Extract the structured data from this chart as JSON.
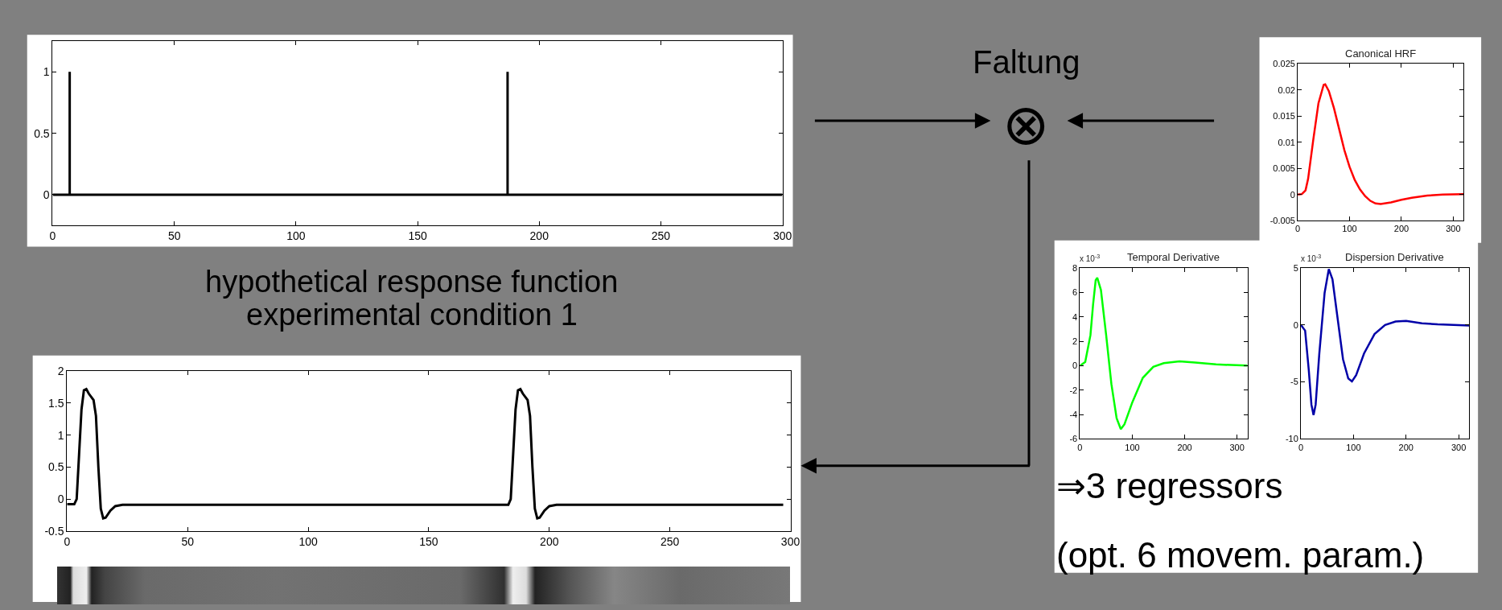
{
  "chart_data": [
    {
      "type": "line",
      "x": [
        0,
        7,
        7,
        7,
        187,
        187,
        187,
        300
      ],
      "values": [
        0,
        0,
        1,
        0,
        0,
        1,
        0,
        0
      ],
      "color": "#000000",
      "xlim": [
        0,
        300
      ],
      "ylim": [
        -0.25,
        1.25
      ],
      "xticks": [
        0,
        50,
        100,
        150,
        200,
        250,
        300
      ],
      "yticks": [
        0,
        0.5,
        1
      ]
    },
    {
      "type": "line",
      "x": [
        0,
        3,
        4,
        5,
        6,
        7,
        8,
        9,
        11,
        12,
        13,
        14,
        15,
        16,
        18,
        20,
        23,
        183,
        184,
        185,
        186,
        187,
        188,
        189,
        191,
        192,
        193,
        194,
        195,
        196,
        198,
        200,
        203,
        297
      ],
      "values": [
        -0.08,
        -0.08,
        0,
        0.7,
        1.4,
        1.7,
        1.72,
        1.65,
        1.55,
        1.3,
        0.5,
        -0.15,
        -0.3,
        -0.29,
        -0.18,
        -0.11,
        -0.09,
        -0.09,
        0,
        0.7,
        1.4,
        1.7,
        1.72,
        1.65,
        1.55,
        1.3,
        0.5,
        -0.15,
        -0.3,
        -0.29,
        -0.18,
        -0.11,
        -0.09,
        -0.09
      ],
      "color": "#000000",
      "xlim": [
        0,
        300
      ],
      "ylim": [
        -0.5,
        2
      ],
      "xticks": [
        0,
        50,
        100,
        150,
        200,
        250,
        300
      ],
      "yticks": [
        -0.5,
        0,
        0.5,
        1,
        1.5,
        2
      ]
    },
    {
      "type": "line",
      "title": "Canonical HRF",
      "x": [
        0,
        8,
        15,
        20,
        30,
        40,
        50,
        53,
        60,
        70,
        80,
        90,
        100,
        110,
        120,
        130,
        140,
        150,
        160,
        180,
        200,
        220,
        250,
        280,
        320
      ],
      "values": [
        0,
        0.0001,
        0.0008,
        0.003,
        0.0105,
        0.0175,
        0.021,
        0.0211,
        0.0198,
        0.0165,
        0.0125,
        0.0085,
        0.0053,
        0.0028,
        0.001,
        -0.0003,
        -0.0012,
        -0.0017,
        -0.0018,
        -0.0015,
        -0.001,
        -0.0006,
        -0.0002,
        0,
        0.0001
      ],
      "color": "#ff0000",
      "xlim": [
        0,
        320
      ],
      "ylim": [
        -0.005,
        0.025
      ],
      "xticks": [
        0,
        100,
        200,
        300
      ],
      "yticks": [
        -0.005,
        0,
        0.005,
        0.01,
        0.015,
        0.02,
        0.025
      ]
    },
    {
      "type": "line",
      "title": "Temporal Derivative",
      "annotations": [
        "x 10$^{-3}$"
      ],
      "x": [
        0,
        10,
        20,
        25,
        30,
        33,
        40,
        50,
        60,
        70,
        78,
        85,
        100,
        120,
        140,
        160,
        190,
        220,
        260,
        320
      ],
      "values": [
        0,
        0.3,
        2.5,
        5,
        7,
        7.2,
        6.2,
        2.5,
        -1.5,
        -4.3,
        -5.2,
        -4.8,
        -3,
        -1,
        -0.1,
        0.2,
        0.35,
        0.25,
        0.1,
        0
      ],
      "color": "#00ff00",
      "xlim": [
        0,
        320
      ],
      "ylim": [
        -6,
        8
      ],
      "xticks": [
        0,
        100,
        200,
        300
      ],
      "yticks": [
        -6,
        -4,
        -2,
        0,
        2,
        4,
        6,
        8
      ]
    },
    {
      "type": "line",
      "title": "Dispersion Derivative",
      "annotations": [
        "x 10$^{-3}$"
      ],
      "x": [
        0,
        8,
        15,
        20,
        24,
        28,
        35,
        45,
        53,
        60,
        70,
        80,
        90,
        97,
        105,
        120,
        140,
        160,
        180,
        200,
        230,
        260,
        320
      ],
      "values": [
        0,
        -0.5,
        -4,
        -7,
        -7.9,
        -7,
        -2.5,
        2.8,
        4.9,
        4,
        0.5,
        -3,
        -4.7,
        -4.95,
        -4.4,
        -2.5,
        -0.8,
        0,
        0.3,
        0.35,
        0.15,
        0.05,
        -0.05
      ],
      "color": "#0000a8",
      "xlim": [
        0,
        320
      ],
      "ylim": [
        -10,
        5
      ],
      "xticks": [
        0,
        100,
        200,
        300
      ],
      "yticks": [
        -10,
        -5,
        0,
        5
      ]
    },
    {
      "type": "other",
      "annotations": [
        "Faltung",
        "⊗",
        "hypothetical response function",
        "experimental condition 1",
        "⇒3 regressors",
        "(opt. 6 movem. param.)"
      ]
    }
  ]
}
